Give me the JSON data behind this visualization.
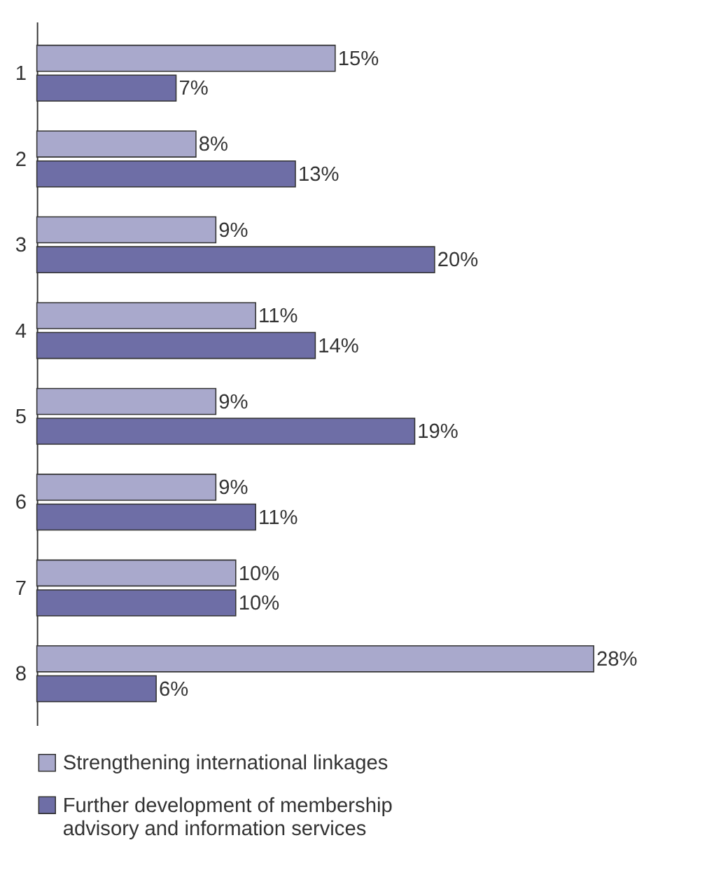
{
  "chart_data": {
    "type": "bar",
    "orientation": "horizontal",
    "categories": [
      "1",
      "2",
      "3",
      "4",
      "5",
      "6",
      "7",
      "8"
    ],
    "series": [
      {
        "name": "Strengthening international linkages",
        "color": "#a9a9cc",
        "values": [
          15,
          8,
          9,
          11,
          9,
          9,
          10,
          28
        ],
        "value_labels": [
          "15%",
          "8%",
          "9%",
          "11%",
          "9%",
          "9%",
          "10%",
          "28%"
        ]
      },
      {
        "name": "Further development of membership advisory and information services",
        "color": "#6e6ea6",
        "values": [
          7,
          13,
          20,
          14,
          19,
          11,
          10,
          6
        ],
        "value_labels": [
          "7%",
          "13%",
          "20%",
          "14%",
          "19%",
          "11%",
          "10%",
          "6%"
        ]
      }
    ],
    "legend": "bottom",
    "grid": false,
    "tick_labels": "y"
  }
}
